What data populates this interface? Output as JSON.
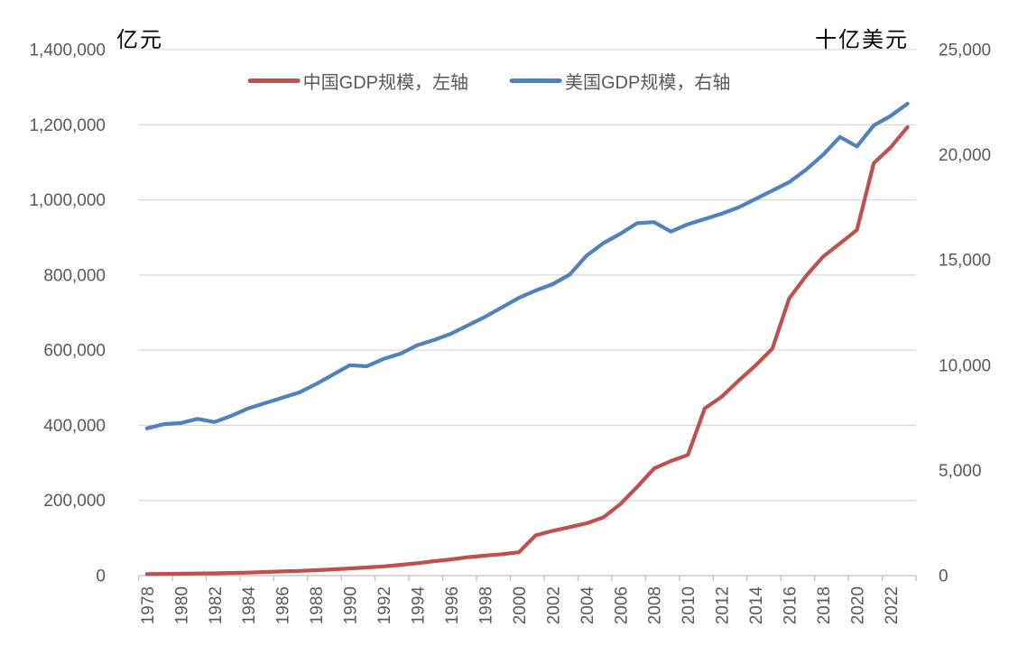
{
  "chart_data": {
    "type": "line",
    "title": "",
    "grid": true,
    "legend_position": "top",
    "background": "#FFFFFF",
    "gridline_color": "#D9D9D9",
    "axis_line_color": "#BFBFBF",
    "tick_text_color": "#595959",
    "left_axis": {
      "title": "亿元",
      "min": 0,
      "max": 1400000,
      "tick_interval": 200000,
      "tick_labels": [
        "1,400,000",
        "1,200,000",
        "1,000,000",
        "800,000",
        "600,000",
        "400,000",
        "200,000",
        "0"
      ]
    },
    "right_axis": {
      "title": "十亿美元",
      "min": 0,
      "max": 25000,
      "tick_interval": 5000,
      "tick_labels": [
        "25,000",
        "20,000",
        "15,000",
        "10,000",
        "5,000",
        "0"
      ]
    },
    "x_axis": {
      "start_year": 1978,
      "end_year": 2023,
      "label_interval": 2,
      "tick_labels": [
        "1978",
        "1980",
        "1982",
        "1984",
        "1986",
        "1988",
        "1990",
        "1992",
        "1994",
        "1996",
        "1998",
        "2000",
        "2002",
        "2004",
        "2006",
        "2008",
        "2010",
        "2012",
        "2014",
        "2016",
        "2018",
        "2020",
        "2022"
      ]
    },
    "years": [
      1978,
      1979,
      1980,
      1981,
      1982,
      1983,
      1984,
      1985,
      1986,
      1987,
      1988,
      1989,
      1990,
      1991,
      1992,
      1993,
      1994,
      1995,
      1996,
      1997,
      1998,
      1999,
      2000,
      2001,
      2002,
      2003,
      2004,
      2005,
      2006,
      2007,
      2008,
      2009,
      2010,
      2011,
      2012,
      2013,
      2014,
      2015,
      2016,
      2017,
      2018,
      2019,
      2020,
      2021,
      2022,
      2023
    ],
    "series": [
      {
        "name": "中国GDP规模，左轴",
        "axis": "left",
        "color": "#C0504D",
        "values": [
          4000,
          4500,
          5000,
          5500,
          6000,
          7000,
          8000,
          9500,
          11000,
          12500,
          14500,
          16500,
          19000,
          21500,
          24500,
          28500,
          33000,
          38500,
          43000,
          49000,
          53000,
          57000,
          62000,
          107000,
          119000,
          129000,
          139000,
          155000,
          190000,
          236000,
          285000,
          305000,
          321000,
          445000,
          476000,
          519000,
          559000,
          604000,
          738000,
          798000,
          849000,
          884000,
          920000,
          1098000,
          1140000,
          1194000
        ]
      },
      {
        "name": "美国GDP规模，右轴",
        "axis": "right",
        "color": "#4F81BD",
        "values": [
          7000,
          7200,
          7250,
          7450,
          7300,
          7600,
          7950,
          8200,
          8450,
          8700,
          9100,
          9550,
          10000,
          9950,
          10300,
          10550,
          10950,
          11200,
          11500,
          11900,
          12300,
          12750,
          13200,
          13550,
          13850,
          14300,
          15200,
          15800,
          16250,
          16750,
          16800,
          16350,
          16700,
          16950,
          17200,
          17500,
          17900,
          18300,
          18700,
          19300,
          20000,
          20850,
          20400,
          21400,
          21850,
          22430
        ]
      }
    ]
  }
}
